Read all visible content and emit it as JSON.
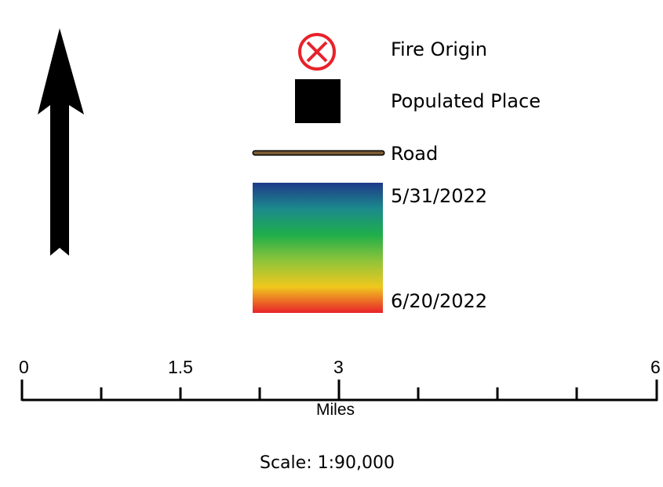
{
  "north_arrow": {
    "icon": "north-arrow-icon"
  },
  "legend": {
    "fire_origin": {
      "label": "Fire Origin",
      "icon": "fire-origin-icon",
      "color": "#e8222a"
    },
    "populated_place": {
      "label": "Populated Place",
      "icon": "square-icon",
      "color": "#000000"
    },
    "road": {
      "label": "Road",
      "icon": "road-line-icon",
      "color": "#7a5a33"
    },
    "date_gradient": {
      "start_label": "5/31/2022",
      "end_label": "6/20/2022",
      "colors": [
        "#1f3a8a",
        "#1b8a8c",
        "#1fae4a",
        "#8fc43a",
        "#f0c81e",
        "#e8222a"
      ]
    }
  },
  "scale_bar": {
    "tick_labels": [
      "0",
      "1.5",
      "3",
      "6"
    ],
    "units": "Miles",
    "scale_text": "Scale: 1:90,000"
  }
}
